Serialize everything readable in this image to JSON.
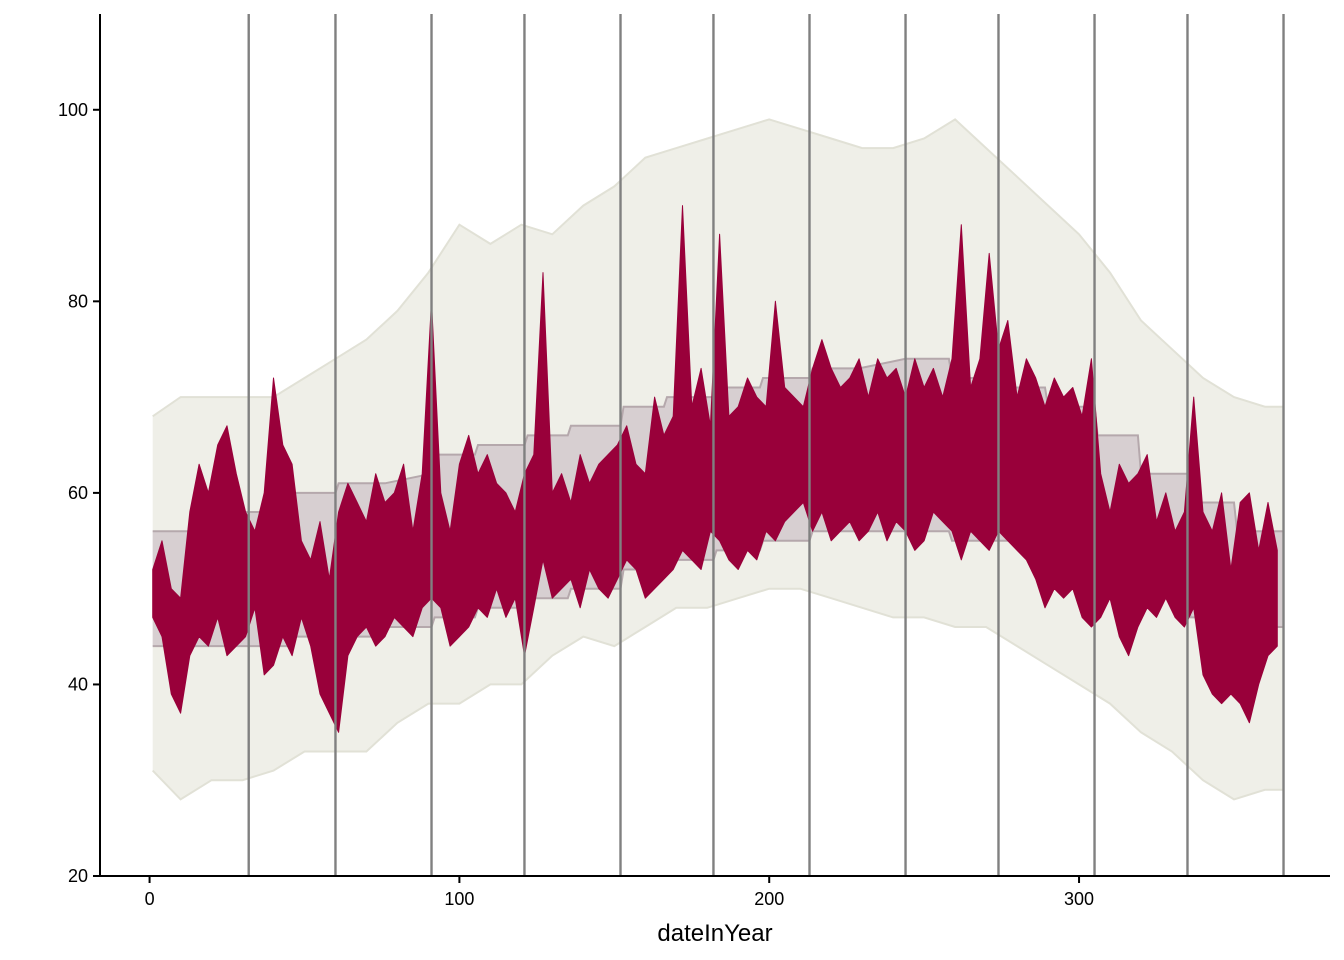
{
  "chart_data": {
    "type": "area",
    "xlabel": "dateInYear",
    "ylabel": "",
    "xlim": [
      -16,
      381
    ],
    "ylim": [
      20,
      110
    ],
    "x_ticks": [
      0,
      100,
      200,
      300
    ],
    "x_tick_labels": [
      "0",
      "100",
      "200",
      "300"
    ],
    "y_ticks": [
      20,
      40,
      60,
      80,
      100
    ],
    "y_tick_labels": [
      "20",
      "40",
      "60",
      "80",
      "100"
    ],
    "month_lines": [
      32,
      60,
      91,
      121,
      152,
      182,
      213,
      244,
      274,
      305,
      335,
      366
    ],
    "grid": false,
    "legend": "none",
    "colors": {
      "record_band": "#efefe8",
      "record_line": "#e1e1d6",
      "normal_band": "#d7cfd1",
      "normal_line": "#b5a8ac",
      "actual": "#99003a",
      "month_line": "#808080",
      "axis": "#000000"
    },
    "series": [
      {
        "role": "record",
        "x": [
          1,
          10,
          20,
          30,
          40,
          50,
          60,
          70,
          80,
          90,
          100,
          110,
          120,
          130,
          140,
          150,
          160,
          170,
          180,
          190,
          200,
          210,
          220,
          230,
          240,
          250,
          260,
          270,
          280,
          290,
          300,
          310,
          320,
          330,
          340,
          350,
          360,
          366
        ],
        "high": [
          68,
          70,
          70,
          70,
          70,
          72,
          74,
          76,
          79,
          83,
          88,
          86,
          88,
          87,
          90,
          92,
          95,
          96,
          97,
          98,
          99,
          98,
          97,
          96,
          96,
          97,
          99,
          96,
          93,
          90,
          87,
          83,
          78,
          75,
          72,
          70,
          69,
          69
        ],
        "low": [
          31,
          28,
          30,
          30,
          31,
          33,
          33,
          33,
          36,
          38,
          38,
          40,
          40,
          43,
          45,
          44,
          46,
          48,
          48,
          49,
          50,
          50,
          49,
          48,
          47,
          47,
          46,
          46,
          44,
          42,
          40,
          38,
          35,
          33,
          30,
          28,
          29,
          29
        ]
      },
      {
        "role": "normal",
        "x": [
          1,
          15,
          30,
          31,
          45,
          46,
          60,
          61,
          75,
          76,
          91,
          92,
          105,
          106,
          121,
          122,
          135,
          136,
          152,
          153,
          166,
          167,
          182,
          183,
          197,
          198,
          213,
          214,
          228,
          229,
          244,
          245,
          258,
          259,
          274,
          275,
          289,
          290,
          305,
          306,
          319,
          320,
          335,
          336,
          350,
          351,
          366
        ],
        "high": [
          56,
          56,
          56,
          58,
          58,
          60,
          60,
          61,
          61,
          61,
          62,
          64,
          64,
          65,
          65,
          66,
          66,
          67,
          67,
          69,
          69,
          70,
          70,
          71,
          71,
          72,
          72,
          73,
          73,
          73,
          74,
          74,
          74,
          72,
          72,
          71,
          71,
          69,
          69,
          66,
          66,
          62,
          62,
          59,
          59,
          56,
          56
        ],
        "low": [
          44,
          44,
          44,
          44,
          44,
          45,
          45,
          45,
          45,
          46,
          46,
          47,
          47,
          48,
          48,
          49,
          49,
          50,
          50,
          52,
          52,
          53,
          53,
          54,
          54,
          55,
          55,
          56,
          56,
          56,
          56,
          56,
          56,
          55,
          55,
          55,
          55,
          53,
          53,
          50,
          50,
          49,
          49,
          47,
          47,
          46,
          46
        ]
      },
      {
        "role": "actual",
        "x": [
          1,
          4,
          7,
          10,
          13,
          16,
          19,
          22,
          25,
          28,
          31,
          34,
          37,
          40,
          43,
          46,
          49,
          52,
          55,
          58,
          61,
          64,
          67,
          70,
          73,
          76,
          79,
          82,
          85,
          88,
          91,
          94,
          97,
          100,
          103,
          106,
          109,
          112,
          115,
          118,
          121,
          124,
          127,
          130,
          133,
          136,
          139,
          142,
          145,
          148,
          151,
          154,
          157,
          160,
          163,
          166,
          169,
          172,
          175,
          178,
          181,
          184,
          187,
          190,
          193,
          196,
          199,
          202,
          205,
          208,
          211,
          214,
          217,
          220,
          223,
          226,
          229,
          232,
          235,
          238,
          241,
          244,
          247,
          250,
          253,
          256,
          259,
          262,
          265,
          268,
          271,
          274,
          277,
          280,
          283,
          286,
          289,
          292,
          295,
          298,
          301,
          304,
          307,
          310,
          313,
          316,
          319,
          322,
          325,
          328,
          331,
          334,
          337,
          340,
          343,
          346,
          349,
          352,
          355,
          358,
          361,
          364
        ],
        "high": [
          52,
          55,
          50,
          49,
          58,
          63,
          60,
          65,
          67,
          62,
          58,
          56,
          60,
          72,
          65,
          63,
          55,
          53,
          57,
          51,
          58,
          61,
          59,
          57,
          62,
          59,
          60,
          63,
          56,
          62,
          80,
          60,
          56,
          63,
          66,
          62,
          64,
          61,
          60,
          58,
          62,
          64,
          83,
          60,
          62,
          59,
          64,
          61,
          63,
          64,
          65,
          67,
          63,
          62,
          70,
          66,
          68,
          90,
          69,
          73,
          67,
          87,
          68,
          69,
          72,
          70,
          69,
          80,
          71,
          70,
          69,
          73,
          76,
          73,
          71,
          72,
          74,
          70,
          74,
          72,
          73,
          70,
          74,
          71,
          73,
          70,
          74,
          88,
          71,
          74,
          85,
          75,
          78,
          70,
          74,
          72,
          69,
          72,
          70,
          71,
          68,
          74,
          62,
          58,
          63,
          61,
          62,
          64,
          57,
          60,
          56,
          58,
          70,
          58,
          56,
          60,
          52,
          59,
          60,
          54,
          59,
          54
        ],
        "low": [
          47,
          45,
          39,
          37,
          43,
          45,
          44,
          47,
          43,
          44,
          45,
          48,
          41,
          42,
          45,
          43,
          47,
          44,
          39,
          37,
          35,
          43,
          45,
          46,
          44,
          45,
          47,
          46,
          45,
          48,
          49,
          48,
          44,
          45,
          46,
          48,
          47,
          50,
          47,
          49,
          43,
          48,
          53,
          49,
          50,
          51,
          48,
          52,
          50,
          49,
          51,
          53,
          52,
          49,
          50,
          51,
          52,
          54,
          53,
          52,
          56,
          55,
          53,
          52,
          54,
          53,
          56,
          55,
          57,
          58,
          59,
          56,
          58,
          55,
          56,
          57,
          55,
          56,
          58,
          55,
          57,
          56,
          54,
          55,
          58,
          57,
          56,
          53,
          56,
          55,
          54,
          56,
          55,
          54,
          53,
          51,
          48,
          50,
          49,
          50,
          47,
          46,
          47,
          49,
          45,
          43,
          46,
          48,
          47,
          49,
          47,
          46,
          48,
          41,
          39,
          38,
          39,
          38,
          36,
          40,
          43,
          44
        ]
      }
    ]
  }
}
